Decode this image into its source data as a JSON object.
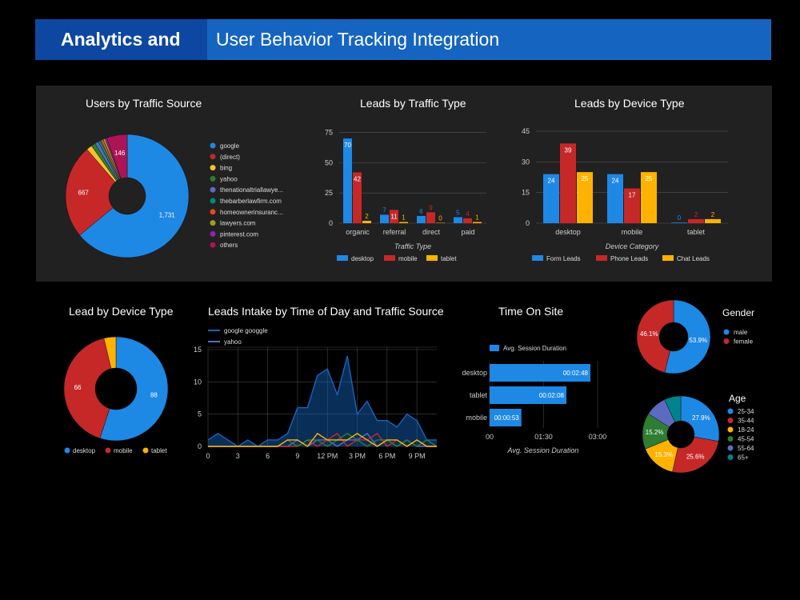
{
  "header": {
    "left_title": "Analytics and",
    "right_title": "User Behavior Tracking Integration"
  },
  "colors": {
    "banner_dark": "#0d47a1",
    "banner": "#1565c0",
    "blue": "#1e88e5",
    "red": "#c62828",
    "yellow": "#ffb300",
    "green": "#2e7d32",
    "purple": "#5c6bc0",
    "teal": "#00838f"
  },
  "chart_data": [
    {
      "id": "users_by_traffic_source",
      "type": "pie",
      "title": "Users by Traffic Source",
      "labels": [
        "google",
        "(direct)",
        "bing",
        "yahoo",
        "thenationaltriallawye...",
        "thebarberlawfirm.com",
        "homeownerinsuranc...",
        "lawyers.com",
        "pinterest.com",
        "others"
      ],
      "values": [
        1731,
        667,
        40,
        30,
        25,
        20,
        18,
        15,
        12,
        146
      ],
      "data_labels": [
        "1,731",
        "667",
        "",
        "",
        "",
        "",
        "",
        "",
        "",
        "146"
      ],
      "colors": [
        "#1e88e5",
        "#c62828",
        "#fbc02d",
        "#2e7d32",
        "#5c6bc0",
        "#00897b",
        "#e64a19",
        "#9e9d24",
        "#8e24aa",
        "#ad1457"
      ],
      "legend": "right"
    },
    {
      "id": "leads_by_traffic_type",
      "type": "bar",
      "title": "Leads by Traffic Type",
      "xlabel": "Traffic Type",
      "categories": [
        "organic",
        "referral",
        "direct",
        "paid"
      ],
      "series": [
        {
          "name": "desktop",
          "values": [
            70,
            7,
            6,
            5
          ],
          "color": "#1e88e5"
        },
        {
          "name": "mobile",
          "values": [
            42,
            11,
            9,
            4
          ],
          "color": "#c62828"
        },
        {
          "name": "tablet",
          "values": [
            2,
            1,
            0,
            1
          ],
          "color": "#ffb300"
        }
      ],
      "yticks": [
        "0",
        "25",
        "50",
        "75"
      ],
      "ylim": [
        0,
        80
      ],
      "legend": "bottom"
    },
    {
      "id": "leads_by_device_type",
      "type": "bar",
      "title": "Leads by Device Type",
      "xlabel": "Device Category",
      "categories": [
        "desktop",
        "mobile",
        "tablet"
      ],
      "series": [
        {
          "name": "Form Leads",
          "values": [
            24,
            24,
            0
          ],
          "color": "#1e88e5"
        },
        {
          "name": "Phone Leads",
          "values": [
            39,
            17,
            2
          ],
          "color": "#c62828"
        },
        {
          "name": "Chat Leads",
          "values": [
            25,
            25,
            2
          ],
          "color": "#ffb300"
        }
      ],
      "yticks": [
        "0",
        "15",
        "30",
        "45"
      ],
      "ylim": [
        0,
        45
      ],
      "legend": "bottom"
    },
    {
      "id": "lead_by_device_type",
      "type": "pie",
      "title": "Lead by Device Type",
      "labels": [
        "desktop",
        "mobile",
        "tablet"
      ],
      "values": [
        88,
        66,
        6
      ],
      "data_labels": [
        "88",
        "66",
        ""
      ],
      "colors": [
        "#1e88e5",
        "#c62828",
        "#ffb300"
      ],
      "legend": "bottom"
    },
    {
      "id": "leads_intake_by_time",
      "type": "area",
      "title": "Leads Intake by Time of Day and Traffic Source",
      "legend_entries": [
        "google googgle",
        "yahoo"
      ],
      "xticks": [
        "0",
        "3",
        "6",
        "9",
        "12 PM",
        "3 PM",
        "6 PM",
        "9 PM"
      ],
      "yticks": [
        "0",
        "5",
        "10",
        "15"
      ],
      "xlim": [
        0,
        23
      ],
      "ylim": [
        0,
        15
      ],
      "series": [
        {
          "name": "google googgle",
          "color": "#1565c0",
          "values": [
            1,
            2,
            1,
            0,
            1,
            0,
            1,
            1,
            2,
            6,
            6,
            11,
            12,
            8,
            14,
            5,
            7,
            4,
            4,
            3,
            5,
            4,
            1,
            1
          ]
        },
        {
          "name": "yahoo",
          "color": "#5c6bc0",
          "values": [
            0,
            0,
            0,
            0,
            0,
            0,
            0,
            0,
            0,
            1,
            0,
            1,
            1,
            0,
            1,
            1,
            2,
            0,
            1,
            0,
            1,
            0,
            0,
            0
          ]
        },
        {
          "name": "",
          "color": "#c62828",
          "values": [
            0,
            0,
            0,
            0,
            0,
            0,
            0,
            0,
            0,
            0,
            1,
            0,
            1,
            2,
            0,
            1,
            1,
            2,
            0,
            1,
            0,
            1,
            0,
            0
          ]
        },
        {
          "name": "",
          "color": "#2e7d32",
          "values": [
            0,
            0,
            0,
            0,
            0,
            0,
            0,
            0,
            1,
            0,
            1,
            1,
            0,
            1,
            2,
            1,
            0,
            1,
            1,
            0,
            1,
            0,
            1,
            0
          ]
        },
        {
          "name": "",
          "color": "#ffb300",
          "values": [
            0,
            0,
            0,
            0,
            0,
            0,
            0,
            0,
            1,
            1,
            0,
            2,
            1,
            1,
            1,
            2,
            1,
            0,
            1,
            1,
            0,
            1,
            0,
            0
          ]
        }
      ]
    },
    {
      "id": "time_on_site",
      "type": "bar",
      "orientation": "horizontal",
      "title": "Time On Site",
      "xlabel": "Avg. Session Duration",
      "legend_entries": [
        "Avg. Session Duration"
      ],
      "categories": [
        "desktop",
        "tablet",
        "mobile"
      ],
      "values_seconds": [
        168,
        128,
        53
      ],
      "data_labels": [
        "00:02:48",
        "00:02:08",
        "00:00:53"
      ],
      "xticks": [
        "00",
        "01:30",
        "03:00"
      ],
      "xlim": [
        0,
        180
      ],
      "color": "#1e88e5"
    },
    {
      "id": "gender",
      "type": "pie",
      "title": "Gender",
      "labels": [
        "male",
        "female"
      ],
      "values": [
        53.9,
        46.1
      ],
      "data_labels": [
        "53.9%",
        "46.1%"
      ],
      "colors": [
        "#1e88e5",
        "#c62828"
      ],
      "legend": "right"
    },
    {
      "id": "age",
      "type": "pie",
      "title": "Age",
      "labels": [
        "25-34",
        "35-44",
        "18-24",
        "45-54",
        "55-64",
        "65+"
      ],
      "values": [
        27.9,
        25.6,
        15.3,
        15.2,
        9,
        7
      ],
      "data_labels": [
        "27.9%",
        "25.6%",
        "15.3%",
        "15.2%",
        "",
        ""
      ],
      "colors": [
        "#1e88e5",
        "#c62828",
        "#ffb300",
        "#2e7d32",
        "#5c6bc0",
        "#00838f"
      ],
      "legend": "right"
    }
  ]
}
